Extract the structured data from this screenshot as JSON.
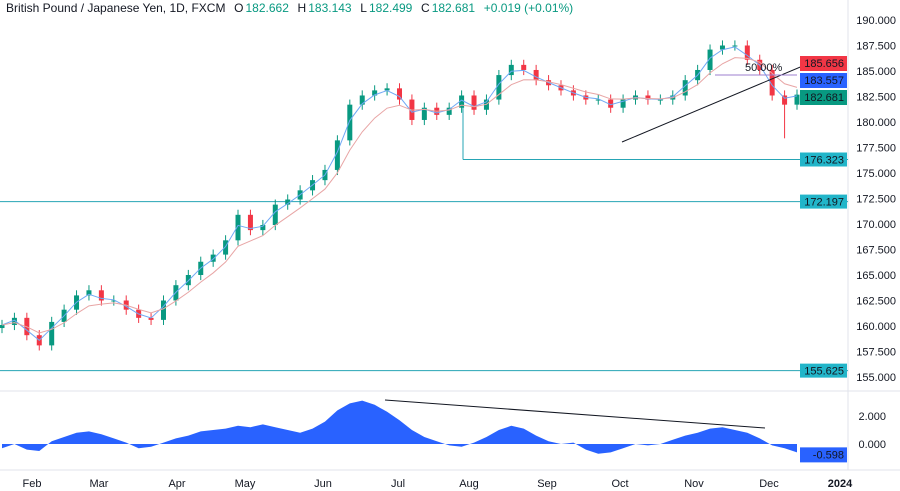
{
  "header": {
    "symbol": "British Pound / Japanese Yen, 1D, FXCM",
    "o_label": "O",
    "o": "182.662",
    "h_label": "H",
    "h": "183.143",
    "l_label": "L",
    "l": "182.499",
    "c_label": "C",
    "c": "182.681",
    "change": "+0.019 (+0.01%)"
  },
  "colors": {
    "up": "#089981",
    "down": "#f23645",
    "fast_ma": "#6fa8f5",
    "slow_ma": "#e8a5a5",
    "level": "#26a5b5",
    "osc": "#2962ff"
  },
  "chart_data": {
    "type": "candlestick",
    "title": "British Pound / Japanese Yen, 1D, FXCM",
    "price_axis": {
      "ticks": [
        "190.000",
        "187.500",
        "185.000",
        "182.500",
        "180.000",
        "177.500",
        "175.000",
        "172.500",
        "170.000",
        "167.500",
        "165.000",
        "162.500",
        "160.000",
        "157.500",
        "155.000"
      ],
      "range": [
        154,
        191
      ]
    },
    "time_axis": {
      "ticks": [
        "Feb",
        "Mar",
        "Apr",
        "May",
        "Jun",
        "Jul",
        "Aug",
        "Sep",
        "Oct",
        "Nov",
        "Dec",
        "2024"
      ]
    },
    "closes": [
      160.1,
      160.8,
      159.1,
      158.1,
      160.4,
      161.6,
      163.0,
      163.5,
      162.5,
      162.5,
      161.6,
      160.8,
      160.6,
      162.5,
      164.0,
      165.0,
      166.3,
      167.0,
      168.4,
      170.9,
      169.4,
      169.9,
      171.9,
      172.4,
      173.3,
      174.3,
      175.3,
      178.2,
      181.7,
      182.6,
      183.1,
      183.3,
      182.2,
      180.2,
      181.4,
      180.7,
      181.4,
      182.6,
      181.2,
      182.2,
      184.6,
      185.6,
      185.1,
      184.1,
      183.6,
      183.1,
      182.6,
      182.2,
      182.2,
      181.4,
      182.2,
      182.6,
      182.2,
      182.2,
      182.6,
      184.1,
      185.1,
      187.1,
      187.5,
      187.5,
      186.1,
      185.1,
      182.6,
      181.7,
      182.681
    ],
    "horizontal_levels": [
      {
        "value": 176.323,
        "label": "176.323"
      },
      {
        "value": 172.197,
        "label": "172.197"
      },
      {
        "value": 155.625,
        "label": "155.625"
      }
    ],
    "price_tags": [
      {
        "label": "185.656",
        "value": 185.656,
        "color": "#f23645"
      },
      {
        "label": "183.557",
        "value": 183.557,
        "color": "#2962ff"
      },
      {
        "label": "182.681",
        "value": 182.681,
        "color": "#089981"
      }
    ],
    "fib_label": "50.00%",
    "oscillator": {
      "ticks": [
        "2.000",
        "0.000"
      ],
      "current": "-0.598",
      "values": [
        -0.3,
        0,
        -0.4,
        -0.5,
        0.2,
        0.5,
        0.8,
        0.9,
        0.7,
        0.4,
        0.1,
        -0.3,
        -0.2,
        0.1,
        0.4,
        0.6,
        0.9,
        1.0,
        1.1,
        1.3,
        1.2,
        1.4,
        1.2,
        1.0,
        0.8,
        1.1,
        1.6,
        2.4,
        2.9,
        3.1,
        2.8,
        2.3,
        1.7,
        1.0,
        0.5,
        0.2,
        -0.1,
        -0.2,
        0.1,
        0.5,
        1.0,
        1.3,
        1.1,
        0.6,
        0.2,
        0.0,
        0.1,
        -0.4,
        -0.7,
        -0.6,
        -0.3,
        0.0,
        -0.1,
        0.0,
        0.3,
        0.6,
        0.8,
        1.1,
        1.2,
        1.0,
        0.8,
        0.4,
        -0.1,
        -0.3,
        -0.598
      ]
    }
  }
}
